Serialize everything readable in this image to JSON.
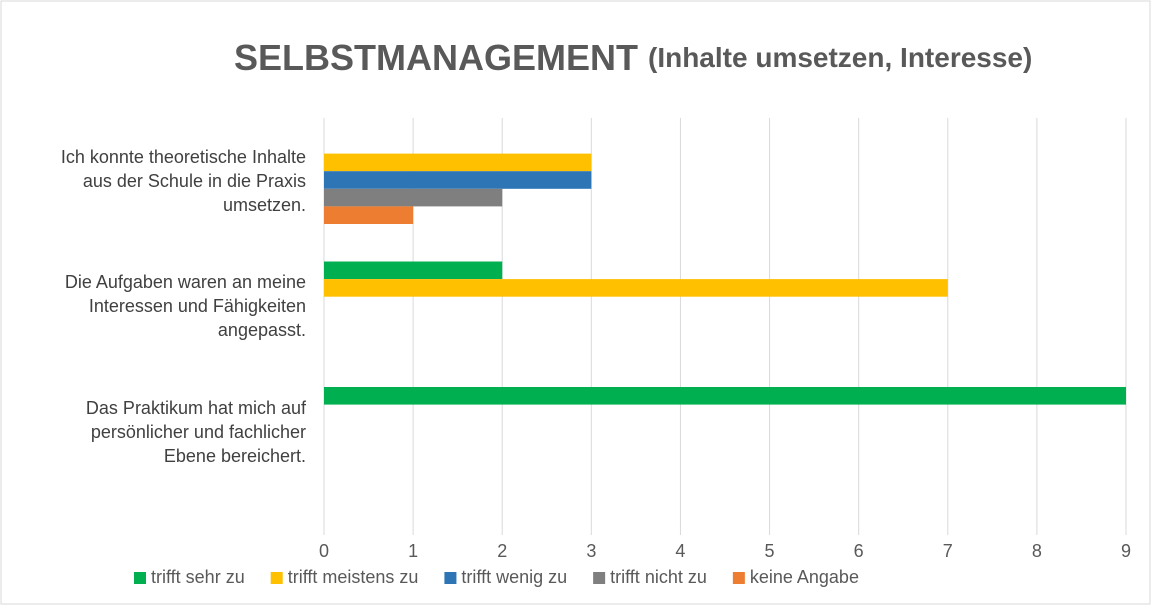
{
  "chart_data": {
    "type": "hbar",
    "title": "SELBSTMANAGEMENT",
    "subtitle": "(Inhalte umsetzen, Interesse)",
    "categories": [
      "Ich konnte theoretische Inhalte aus der Schule in die Praxis umsetzen.",
      "Die Aufgaben waren an meine Interessen und Fähigkeiten angepasst.",
      "Das Praktikum hat mich auf persönlicher und fachlicher Ebene bereichert."
    ],
    "series": [
      {
        "name": "trifft sehr zu",
        "color": "#00b050",
        "values": [
          0,
          2,
          9
        ]
      },
      {
        "name": "trifft meistens zu",
        "color": "#ffc000",
        "values": [
          3,
          7,
          0
        ]
      },
      {
        "name": "trifft wenig zu",
        "color": "#2e75b6",
        "values": [
          3,
          0,
          0
        ]
      },
      {
        "name": "trifft nicht zu",
        "color": "#7f7f7f",
        "values": [
          2,
          0,
          0
        ]
      },
      {
        "name": "keine Angabe",
        "color": "#ed7d31",
        "values": [
          1,
          0,
          0
        ]
      }
    ],
    "xlim": [
      0,
      9
    ],
    "xticks": [
      0,
      1,
      2,
      3,
      4,
      5,
      6,
      7,
      8,
      9
    ],
    "grid": true,
    "legend": "bottom"
  }
}
